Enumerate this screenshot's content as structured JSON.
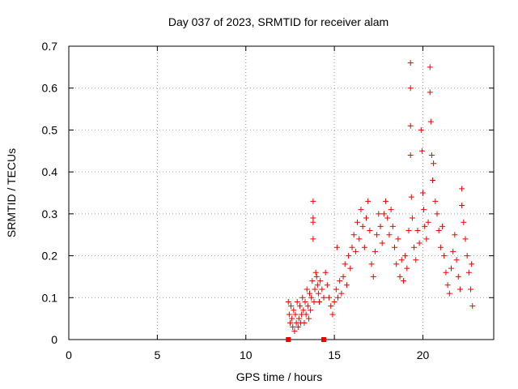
{
  "chart_data": {
    "type": "scatter",
    "title": "Day 037 of 2023, SRMTID for receiver alam",
    "xlabel": "GPS time / hours",
    "ylabel": "SRMTID / TECUs",
    "xlim": [
      0,
      24
    ],
    "ylim": [
      0,
      0.7
    ],
    "xticks": [
      0,
      5,
      10,
      15,
      20
    ],
    "xtick_labels": [
      "0",
      "5",
      "10",
      "15",
      "20"
    ],
    "yticks": [
      0,
      0.1,
      0.2,
      0.3,
      0.4,
      0.5,
      0.6,
      0.7
    ],
    "ytick_labels": [
      "0",
      "0.1",
      "0.2",
      "0.3",
      "0.4",
      "0.5",
      "0.6",
      "0.7"
    ],
    "grid": true,
    "marker": "plus",
    "color": "#ee0000",
    "square_points": [
      {
        "x": 12.4,
        "y": 0.0
      },
      {
        "x": 14.4,
        "y": 0.0
      }
    ],
    "points": [
      {
        "x": 12.4,
        "y": 0.09
      },
      {
        "x": 12.45,
        "y": 0.06
      },
      {
        "x": 12.5,
        "y": 0.04
      },
      {
        "x": 12.55,
        "y": 0.08
      },
      {
        "x": 12.6,
        "y": 0.05
      },
      {
        "x": 12.65,
        "y": 0.03
      },
      {
        "x": 12.7,
        "y": 0.07
      },
      {
        "x": 12.75,
        "y": 0.02
      },
      {
        "x": 12.8,
        "y": 0.06
      },
      {
        "x": 12.85,
        "y": 0.04
      },
      {
        "x": 12.9,
        "y": 0.09
      },
      {
        "x": 12.95,
        "y": 0.03
      },
      {
        "x": 13.0,
        "y": 0.05
      },
      {
        "x": 13.05,
        "y": 0.08
      },
      {
        "x": 13.1,
        "y": 0.04
      },
      {
        "x": 13.15,
        "y": 0.06
      },
      {
        "x": 13.2,
        "y": 0.1
      },
      {
        "x": 13.25,
        "y": 0.07
      },
      {
        "x": 13.3,
        "y": 0.04
      },
      {
        "x": 13.35,
        "y": 0.09
      },
      {
        "x": 13.4,
        "y": 0.06
      },
      {
        "x": 13.45,
        "y": 0.12
      },
      {
        "x": 13.5,
        "y": 0.08
      },
      {
        "x": 13.55,
        "y": 0.05
      },
      {
        "x": 13.6,
        "y": 0.11
      },
      {
        "x": 13.65,
        "y": 0.07
      },
      {
        "x": 13.7,
        "y": 0.1
      },
      {
        "x": 13.75,
        "y": 0.14
      },
      {
        "x": 13.8,
        "y": 0.33
      },
      {
        "x": 13.8,
        "y": 0.29
      },
      {
        "x": 13.8,
        "y": 0.28
      },
      {
        "x": 13.8,
        "y": 0.24
      },
      {
        "x": 13.85,
        "y": 0.09
      },
      {
        "x": 13.9,
        "y": 0.12
      },
      {
        "x": 13.95,
        "y": 0.16
      },
      {
        "x": 14.0,
        "y": 0.15
      },
      {
        "x": 14.05,
        "y": 0.13
      },
      {
        "x": 14.1,
        "y": 0.11
      },
      {
        "x": 14.15,
        "y": 0.09
      },
      {
        "x": 14.2,
        "y": 0.14
      },
      {
        "x": 14.3,
        "y": 0.12
      },
      {
        "x": 14.4,
        "y": 0.1
      },
      {
        "x": 14.5,
        "y": 0.16
      },
      {
        "x": 14.6,
        "y": 0.13
      },
      {
        "x": 14.7,
        "y": 0.1
      },
      {
        "x": 14.8,
        "y": 0.08
      },
      {
        "x": 14.9,
        "y": 0.06
      },
      {
        "x": 15.0,
        "y": 0.09
      },
      {
        "x": 15.1,
        "y": 0.12
      },
      {
        "x": 15.15,
        "y": 0.22
      },
      {
        "x": 15.2,
        "y": 0.1
      },
      {
        "x": 15.3,
        "y": 0.14
      },
      {
        "x": 15.4,
        "y": 0.11
      },
      {
        "x": 15.5,
        "y": 0.15
      },
      {
        "x": 15.6,
        "y": 0.18
      },
      {
        "x": 15.7,
        "y": 0.13
      },
      {
        "x": 15.8,
        "y": 0.2
      },
      {
        "x": 15.9,
        "y": 0.17
      },
      {
        "x": 16.0,
        "y": 0.22
      },
      {
        "x": 16.1,
        "y": 0.25
      },
      {
        "x": 16.2,
        "y": 0.21
      },
      {
        "x": 16.3,
        "y": 0.28
      },
      {
        "x": 16.4,
        "y": 0.24
      },
      {
        "x": 16.5,
        "y": 0.31
      },
      {
        "x": 16.6,
        "y": 0.27
      },
      {
        "x": 16.7,
        "y": 0.22
      },
      {
        "x": 16.8,
        "y": 0.29
      },
      {
        "x": 16.9,
        "y": 0.33
      },
      {
        "x": 17.0,
        "y": 0.26
      },
      {
        "x": 17.1,
        "y": 0.18
      },
      {
        "x": 17.2,
        "y": 0.15
      },
      {
        "x": 17.3,
        "y": 0.21
      },
      {
        "x": 17.4,
        "y": 0.25
      },
      {
        "x": 17.5,
        "y": 0.3
      },
      {
        "x": 17.6,
        "y": 0.27
      },
      {
        "x": 17.7,
        "y": 0.23
      },
      {
        "x": 17.8,
        "y": 0.3
      },
      {
        "x": 17.9,
        "y": 0.33
      },
      {
        "x": 18.0,
        "y": 0.29
      },
      {
        "x": 18.1,
        "y": 0.25
      },
      {
        "x": 18.2,
        "y": 0.31
      },
      {
        "x": 18.3,
        "y": 0.27
      },
      {
        "x": 18.4,
        "y": 0.22
      },
      {
        "x": 18.5,
        "y": 0.18
      },
      {
        "x": 18.6,
        "y": 0.24
      },
      {
        "x": 18.7,
        "y": 0.15
      },
      {
        "x": 18.8,
        "y": 0.19
      },
      {
        "x": 18.9,
        "y": 0.14
      },
      {
        "x": 19.0,
        "y": 0.2
      },
      {
        "x": 19.1,
        "y": 0.17
      },
      {
        "x": 19.2,
        "y": 0.26
      },
      {
        "x": 19.3,
        "y": 0.66
      },
      {
        "x": 19.3,
        "y": 0.6
      },
      {
        "x": 19.3,
        "y": 0.51
      },
      {
        "x": 19.3,
        "y": 0.44
      },
      {
        "x": 19.35,
        "y": 0.34
      },
      {
        "x": 19.4,
        "y": 0.29
      },
      {
        "x": 19.5,
        "y": 0.22
      },
      {
        "x": 19.6,
        "y": 0.19
      },
      {
        "x": 19.7,
        "y": 0.26
      },
      {
        "x": 19.8,
        "y": 0.23
      },
      {
        "x": 19.9,
        "y": 0.5
      },
      {
        "x": 19.95,
        "y": 0.45
      },
      {
        "x": 20.0,
        "y": 0.35
      },
      {
        "x": 20.05,
        "y": 0.31
      },
      {
        "x": 20.1,
        "y": 0.27
      },
      {
        "x": 20.2,
        "y": 0.24
      },
      {
        "x": 20.3,
        "y": 0.28
      },
      {
        "x": 20.4,
        "y": 0.65
      },
      {
        "x": 20.4,
        "y": 0.59
      },
      {
        "x": 20.45,
        "y": 0.52
      },
      {
        "x": 20.5,
        "y": 0.44
      },
      {
        "x": 20.55,
        "y": 0.38
      },
      {
        "x": 20.6,
        "y": 0.42
      },
      {
        "x": 20.7,
        "y": 0.33
      },
      {
        "x": 20.8,
        "y": 0.3
      },
      {
        "x": 20.9,
        "y": 0.26
      },
      {
        "x": 21.0,
        "y": 0.22
      },
      {
        "x": 21.1,
        "y": 0.27
      },
      {
        "x": 21.2,
        "y": 0.2
      },
      {
        "x": 21.3,
        "y": 0.16
      },
      {
        "x": 21.4,
        "y": 0.13
      },
      {
        "x": 21.5,
        "y": 0.11
      },
      {
        "x": 21.6,
        "y": 0.17
      },
      {
        "x": 21.7,
        "y": 0.21
      },
      {
        "x": 21.8,
        "y": 0.25
      },
      {
        "x": 21.9,
        "y": 0.19
      },
      {
        "x": 22.0,
        "y": 0.15
      },
      {
        "x": 22.1,
        "y": 0.12
      },
      {
        "x": 22.2,
        "y": 0.36
      },
      {
        "x": 22.2,
        "y": 0.32
      },
      {
        "x": 22.3,
        "y": 0.28
      },
      {
        "x": 22.4,
        "y": 0.24
      },
      {
        "x": 22.5,
        "y": 0.2
      },
      {
        "x": 22.6,
        "y": 0.16
      },
      {
        "x": 22.7,
        "y": 0.12
      },
      {
        "x": 22.75,
        "y": 0.18
      },
      {
        "x": 22.8,
        "y": 0.08
      }
    ]
  }
}
